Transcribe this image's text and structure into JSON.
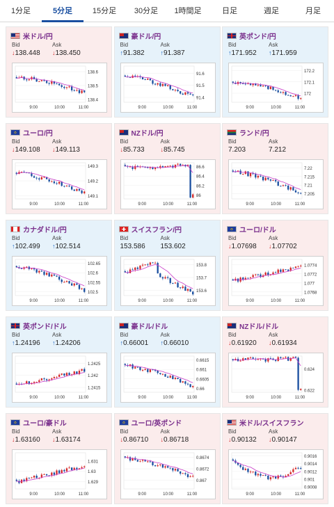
{
  "tabs": [
    {
      "label": "1分足",
      "active": false
    },
    {
      "label": "5分足",
      "active": true
    },
    {
      "label": "15分足",
      "active": false
    },
    {
      "label": "30分足",
      "active": false
    },
    {
      "label": "1時間足",
      "active": false
    },
    {
      "label": "日足",
      "active": false
    },
    {
      "label": "週足",
      "active": false
    },
    {
      "label": "月足",
      "active": false
    }
  ],
  "labels": {
    "bid": "Bid",
    "ask": "Ask"
  },
  "colors": {
    "up": "#1a66c2",
    "down": "#d42a2a",
    "ma": "#c83ac8",
    "bg_red": "#fbecec",
    "bg_blue": "#e6f2fa",
    "candle_up": "#d42a2a",
    "candle_down": "#1a4fa0"
  },
  "pairs": [
    {
      "name": "米ドル/円",
      "flag": "us",
      "bg": "red",
      "dir": "down",
      "bid": "138.448",
      "ask": "138.450",
      "chart_data": {
        "type": "candlestick",
        "x_ticks": [
          "9:00",
          "10:00",
          "11:00"
        ],
        "y_ticks": [
          "138.6",
          "138.5",
          "138.4"
        ],
        "ylim": [
          138.38,
          138.64
        ],
        "base": 138.56,
        "low": 138.45,
        "trend": "down"
      }
    },
    {
      "name": "豪ドル/円",
      "flag": "au",
      "bg": "blue",
      "dir": "up",
      "bid": "91.382",
      "ask": "91.387",
      "chart_data": {
        "type": "candlestick",
        "x_ticks": [
          "9:00",
          "10:00",
          "11:00"
        ],
        "y_ticks": [
          "91.6",
          "91.5",
          "91.4"
        ],
        "ylim": [
          91.36,
          91.66
        ],
        "base": 91.58,
        "low": 91.4,
        "trend": "down"
      }
    },
    {
      "name": "英ポンド/円",
      "flag": "gb",
      "bg": "blue",
      "dir": "up",
      "bid": "171.952",
      "ask": "171.959",
      "chart_data": {
        "type": "candlestick",
        "x_ticks": [
          "9:00",
          "10:00",
          "11:00"
        ],
        "y_ticks": [
          "172.2",
          "172.1",
          "172"
        ],
        "ylim": [
          171.92,
          172.24
        ],
        "base": 172.1,
        "low": 171.96,
        "trend": "down"
      }
    },
    {
      "name": "ユーロ/円",
      "flag": "eu",
      "bg": "red",
      "dir": "down",
      "bid": "149.108",
      "ask": "149.113",
      "chart_data": {
        "type": "candlestick",
        "x_ticks": [
          "9:00",
          "10:00",
          "11:00"
        ],
        "y_ticks": [
          "149.3",
          "149.2",
          "149.1"
        ],
        "ylim": [
          149.08,
          149.32
        ],
        "base": 149.25,
        "low": 149.12,
        "trend": "down"
      }
    },
    {
      "name": "NZドル/円",
      "flag": "nz",
      "bg": "red",
      "dir": "down",
      "bid": "85.733",
      "ask": "85.745",
      "chart_data": {
        "type": "candlestick",
        "x_ticks": [
          "9:00",
          "10:00",
          "11:00"
        ],
        "y_ticks": [
          "86.6",
          "86.4",
          "86.2",
          "86"
        ],
        "ylim": [
          85.92,
          86.68
        ],
        "base": 86.6,
        "low": 86.55,
        "trend": "flat_drop"
      }
    },
    {
      "name": "ランド/円",
      "flag": "za",
      "bg": "red",
      "dir": "none",
      "bid": "7.203",
      "ask": "7.212",
      "chart_data": {
        "type": "candlestick",
        "x_ticks": [
          "9:00",
          "10:00",
          "11:00"
        ],
        "y_ticks": [
          "7.22",
          "7.215",
          "7.21",
          "7.205"
        ],
        "ylim": [
          7.202,
          7.223
        ],
        "base": 7.218,
        "low": 7.205,
        "trend": "down"
      }
    },
    {
      "name": "カナダドル/円",
      "flag": "ca",
      "bg": "blue",
      "dir": "up",
      "bid": "102.499",
      "ask": "102.514",
      "chart_data": {
        "type": "candlestick",
        "x_ticks": [
          "9:00",
          "10:00",
          "11:00"
        ],
        "y_ticks": [
          "102.65",
          "102.6",
          "102.55",
          "102.5"
        ],
        "ylim": [
          102.48,
          102.67
        ],
        "base": 102.63,
        "low": 102.51,
        "trend": "down"
      }
    },
    {
      "name": "スイスフラン/円",
      "flag": "ch",
      "bg": "blue",
      "dir": "none",
      "bid": "153.586",
      "ask": "153.602",
      "chart_data": {
        "type": "candlestick",
        "x_ticks": [
          "9:00",
          "10:00",
          "11:00"
        ],
        "y_ticks": [
          "153.8",
          "153.7",
          "153.6"
        ],
        "ylim": [
          153.56,
          153.84
        ],
        "base": 153.74,
        "low": 153.6,
        "trend": "hump_down"
      }
    },
    {
      "name": "ユーロ/ドル",
      "flag": "eu",
      "bg": "red",
      "dir": "down",
      "bid": "1.07698",
      "ask": "1.07702",
      "chart_data": {
        "type": "candlestick",
        "x_ticks": [
          "9:00",
          "10:00",
          "11:00"
        ],
        "y_ticks": [
          "1.0774",
          "1.0772",
          "1.077",
          "1.0768"
        ],
        "ylim": [
          1.07672,
          1.07752
        ],
        "base": 1.07705,
        "low": 1.07735,
        "trend": "up"
      }
    },
    {
      "name": "英ポンド/ドル",
      "flag": "gb",
      "bg": "blue",
      "dir": "up",
      "bid": "1.24196",
      "ask": "1.24206",
      "chart_data": {
        "type": "candlestick",
        "x_ticks": [
          "9:00",
          "10:00",
          "11:00"
        ],
        "y_ticks": [
          "1.2425",
          "1.242",
          "1.2415"
        ],
        "ylim": [
          1.2413,
          1.2428
        ],
        "base": 1.2416,
        "low": 1.2422,
        "trend": "up"
      }
    },
    {
      "name": "豪ドル/ドル",
      "flag": "au",
      "bg": "blue",
      "dir": "up",
      "bid": "0.66001",
      "ask": "0.66010",
      "chart_data": {
        "type": "candlestick",
        "x_ticks": [
          "9:00",
          "10:00",
          "11:00"
        ],
        "y_ticks": [
          "0.6615",
          "0.661",
          "0.6605",
          "0.66"
        ],
        "ylim": [
          0.6598,
          0.6617
        ],
        "base": 0.6612,
        "low": 0.6601,
        "trend": "down"
      }
    },
    {
      "name": "NZドル/ドル",
      "flag": "nz",
      "bg": "red",
      "dir": "down",
      "bid": "0.61920",
      "ask": "0.61934",
      "chart_data": {
        "type": "candlestick",
        "x_ticks": [
          "9:00",
          "10:00",
          "11:00"
        ],
        "y_ticks": [
          "0.624",
          "0.622"
        ],
        "ylim": [
          0.6218,
          0.6252
        ],
        "base": 0.6249,
        "low": 0.6247,
        "trend": "flat_drop"
      }
    },
    {
      "name": "ユーロ/豪ドル",
      "flag": "eu",
      "bg": "red",
      "dir": "down",
      "bid": "1.63160",
      "ask": "1.63174",
      "chart_data": {
        "type": "candlestick",
        "x_ticks": [
          "9:00",
          "10:00",
          "11:00"
        ],
        "y_ticks": [
          "1.631",
          "1.63",
          "1.629"
        ],
        "ylim": [
          1.6283,
          1.6318
        ],
        "base": 1.629,
        "low": 1.6305,
        "trend": "up"
      }
    },
    {
      "name": "ユーロ/英ポンド",
      "flag": "eu",
      "bg": "red",
      "dir": "down",
      "bid": "0.86710",
      "ask": "0.86718",
      "chart_data": {
        "type": "candlestick",
        "x_ticks": [
          "9:00",
          "10:00",
          "11:00"
        ],
        "y_ticks": [
          "0.8674",
          "0.8672",
          "0.867"
        ],
        "ylim": [
          0.86685,
          0.86748
        ],
        "base": 0.86738,
        "low": 0.86705,
        "trend": "down"
      }
    },
    {
      "name": "米ドル/スイスフラン",
      "flag": "us",
      "bg": "red",
      "dir": "down",
      "bid": "0.90132",
      "ask": "0.90147",
      "chart_data": {
        "type": "candlestick",
        "x_ticks": [
          "9:00",
          "10:00",
          "11:00"
        ],
        "y_ticks": [
          "0.9016",
          "0.9014",
          "0.9012",
          "0.901",
          "0.9008"
        ],
        "ylim": [
          0.90075,
          0.90168
        ],
        "base": 0.90145,
        "low": 0.9013,
        "trend": "dip"
      }
    }
  ]
}
